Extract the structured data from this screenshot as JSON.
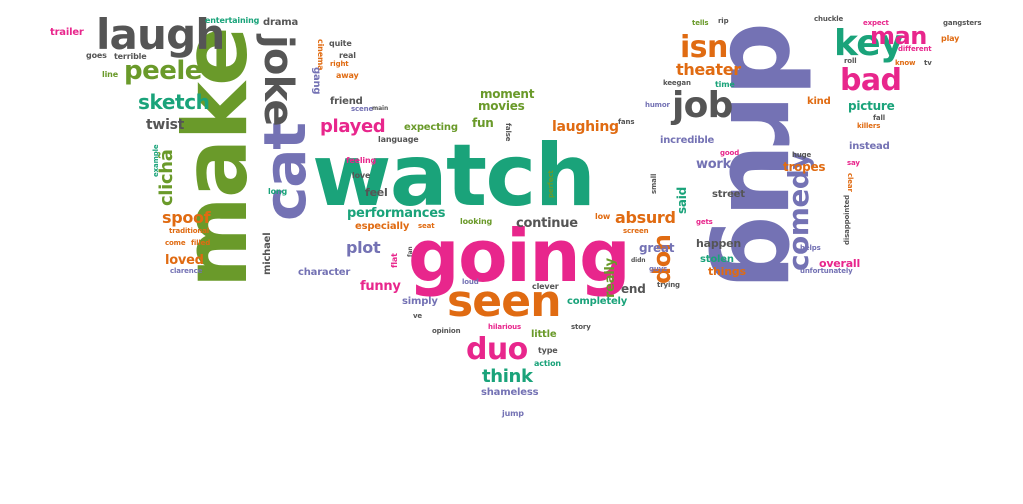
{
  "palette": {
    "pink": "#e8268c",
    "green": "#1aa37a",
    "purple": "#7472b4",
    "gray": "#555555",
    "orange": "#e06b12",
    "olive": "#6a9a2a",
    "brown": "#a87a2a"
  },
  "words": [
    {
      "text": "watch",
      "color": "green",
      "size": "xl"
    },
    {
      "text": "drug",
      "color": "purple",
      "size": "xl"
    },
    {
      "text": "make",
      "color": "olive",
      "size": "xl"
    },
    {
      "text": "going",
      "color": "pink",
      "size": "xl"
    },
    {
      "text": "cat",
      "color": "purple",
      "size": "l"
    },
    {
      "text": "joke",
      "color": "gray",
      "size": "l"
    },
    {
      "text": "seen",
      "color": "orange",
      "size": "l"
    },
    {
      "text": "laugh",
      "color": "gray",
      "size": "l"
    },
    {
      "text": "job",
      "color": "gray",
      "size": "l"
    },
    {
      "text": "key",
      "color": "green",
      "size": "l"
    },
    {
      "text": "bad",
      "color": "pink",
      "size": "l"
    },
    {
      "text": "duo",
      "color": "pink",
      "size": "l"
    },
    {
      "text": "comedy",
      "color": "purple",
      "size": "l"
    },
    {
      "text": "isn",
      "color": "orange",
      "size": "l"
    },
    {
      "text": "man",
      "color": "pink",
      "size": "l"
    },
    {
      "text": "peele",
      "color": "olive",
      "size": "m"
    },
    {
      "text": "sketch",
      "color": "green",
      "size": "m"
    },
    {
      "text": "played",
      "color": "pink",
      "size": "m"
    },
    {
      "text": "theater",
      "color": "orange",
      "size": "m"
    },
    {
      "text": "don",
      "color": "orange",
      "size": "m"
    },
    {
      "text": "clichã",
      "color": "olive",
      "size": "m"
    },
    {
      "text": "think",
      "color": "green",
      "size": "m"
    },
    {
      "text": "absurd",
      "color": "orange",
      "size": "m"
    },
    {
      "text": "plot",
      "color": "purple",
      "size": "m"
    },
    {
      "text": "spoof",
      "color": "orange",
      "size": "m"
    },
    {
      "text": "laughing",
      "color": "orange",
      "size": "m"
    },
    {
      "text": "moment",
      "color": "olive",
      "size": "s"
    },
    {
      "text": "movies",
      "color": "olive",
      "size": "s"
    },
    {
      "text": "fun",
      "color": "olive",
      "size": "s"
    },
    {
      "text": "twist",
      "color": "gray",
      "size": "s"
    },
    {
      "text": "performances",
      "color": "green",
      "size": "s"
    },
    {
      "text": "continue",
      "color": "gray",
      "size": "s"
    },
    {
      "text": "work",
      "color": "purple",
      "size": "s"
    },
    {
      "text": "tropes",
      "color": "orange",
      "size": "s"
    },
    {
      "text": "picture",
      "color": "green",
      "size": "s"
    },
    {
      "text": "loved",
      "color": "orange",
      "size": "s"
    },
    {
      "text": "funny",
      "color": "pink",
      "size": "s"
    },
    {
      "text": "end",
      "color": "gray",
      "size": "s"
    },
    {
      "text": "great",
      "color": "purple",
      "size": "s"
    },
    {
      "text": "overall",
      "color": "pink",
      "size": "s"
    },
    {
      "text": "incredible",
      "color": "purple",
      "size": "s"
    },
    {
      "text": "happen",
      "color": "gray",
      "size": "s"
    },
    {
      "text": "things",
      "color": "orange",
      "size": "s"
    },
    {
      "text": "really",
      "color": "olive",
      "size": "s"
    },
    {
      "text": "said",
      "color": "green",
      "size": "s"
    },
    {
      "text": "character",
      "color": "purple",
      "size": "s"
    },
    {
      "text": "especially",
      "color": "orange",
      "size": "s"
    },
    {
      "text": "feel",
      "color": "gray",
      "size": "s"
    },
    {
      "text": "completely",
      "color": "green",
      "size": "s"
    },
    {
      "text": "little",
      "color": "olive",
      "size": "s"
    },
    {
      "text": "shameless",
      "color": "purple",
      "size": "s"
    },
    {
      "text": "expecting",
      "color": "olive",
      "size": "s"
    },
    {
      "text": "friend",
      "color": "gray",
      "size": "s"
    },
    {
      "text": "michael",
      "color": "gray",
      "size": "s"
    },
    {
      "text": "stolen",
      "color": "green",
      "size": "s"
    },
    {
      "text": "instead",
      "color": "purple",
      "size": "s"
    },
    {
      "text": "street",
      "color": "gray",
      "size": "s"
    },
    {
      "text": "kind",
      "color": "orange",
      "size": "s"
    },
    {
      "text": "simply",
      "color": "purple",
      "size": "s"
    },
    {
      "text": "clever",
      "color": "gray",
      "size": "s"
    },
    {
      "text": "trailer",
      "color": "pink",
      "size": "xs"
    },
    {
      "text": "entertaining",
      "color": "green",
      "size": "xs"
    },
    {
      "text": "drama",
      "color": "gray",
      "size": "xs"
    },
    {
      "text": "goes",
      "color": "gray",
      "size": "xs"
    },
    {
      "text": "terrible",
      "color": "gray",
      "size": "xs"
    },
    {
      "text": "line",
      "color": "olive",
      "size": "xs"
    },
    {
      "text": "quite",
      "color": "gray",
      "size": "xs"
    },
    {
      "text": "real",
      "color": "gray",
      "size": "xs"
    },
    {
      "text": "right",
      "color": "orange",
      "size": "xs"
    },
    {
      "text": "cinema",
      "color": "orange",
      "size": "xs"
    },
    {
      "text": "gang",
      "color": "purple",
      "size": "xs"
    },
    {
      "text": "away",
      "color": "orange",
      "size": "xs"
    },
    {
      "text": "scene",
      "color": "purple",
      "size": "xs"
    },
    {
      "text": "language",
      "color": "gray",
      "size": "xs"
    },
    {
      "text": "feeling",
      "color": "pink",
      "size": "xs"
    },
    {
      "text": "love",
      "color": "gray",
      "size": "xs"
    },
    {
      "text": "long",
      "color": "green",
      "size": "xs"
    },
    {
      "text": "example",
      "color": "green",
      "size": "xs"
    },
    {
      "text": "traditional",
      "color": "orange",
      "size": "xs"
    },
    {
      "text": "come",
      "color": "orange",
      "size": "xs"
    },
    {
      "text": "filled",
      "color": "orange",
      "size": "xs"
    },
    {
      "text": "clarence",
      "color": "purple",
      "size": "xs"
    },
    {
      "text": "flat",
      "color": "pink",
      "size": "xs"
    },
    {
      "text": "fan",
      "color": "gray",
      "size": "xs"
    },
    {
      "text": "looking",
      "color": "olive",
      "size": "xs"
    },
    {
      "text": "seat",
      "color": "orange",
      "size": "xs"
    },
    {
      "text": "loud",
      "color": "purple",
      "size": "xs"
    },
    {
      "text": "opinion",
      "color": "gray",
      "size": "xs"
    },
    {
      "text": "hilarious",
      "color": "pink",
      "size": "xs"
    },
    {
      "text": "story",
      "color": "gray",
      "size": "xs"
    },
    {
      "text": "type",
      "color": "gray",
      "size": "xs"
    },
    {
      "text": "action",
      "color": "green",
      "size": "xs"
    },
    {
      "text": "jump",
      "color": "purple",
      "size": "xs"
    },
    {
      "text": "ve",
      "color": "gray",
      "size": "xs"
    },
    {
      "text": "false",
      "color": "gray",
      "size": "xs"
    },
    {
      "text": "main",
      "color": "gray",
      "size": "xs"
    },
    {
      "text": "perfect",
      "color": "olive",
      "size": "xs"
    },
    {
      "text": "low",
      "color": "orange",
      "size": "xs"
    },
    {
      "text": "screen",
      "color": "orange",
      "size": "xs"
    },
    {
      "text": "guys",
      "color": "purple",
      "size": "xs"
    },
    {
      "text": "didn",
      "color": "gray",
      "size": "xs"
    },
    {
      "text": "trying",
      "color": "gray",
      "size": "xs"
    },
    {
      "text": "tells",
      "color": "olive",
      "size": "xs"
    },
    {
      "text": "rip",
      "color": "gray",
      "size": "xs"
    },
    {
      "text": "chuckle",
      "color": "gray",
      "size": "xs"
    },
    {
      "text": "expect",
      "color": "pink",
      "size": "xs"
    },
    {
      "text": "gangsters",
      "color": "gray",
      "size": "xs"
    },
    {
      "text": "different",
      "color": "pink",
      "size": "xs"
    },
    {
      "text": "play",
      "color": "orange",
      "size": "xs"
    },
    {
      "text": "roll",
      "color": "gray",
      "size": "xs"
    },
    {
      "text": "know",
      "color": "orange",
      "size": "xs"
    },
    {
      "text": "tv",
      "color": "gray",
      "size": "xs"
    },
    {
      "text": "time",
      "color": "green",
      "size": "xs"
    },
    {
      "text": "keegan",
      "color": "gray",
      "size": "xs"
    },
    {
      "text": "humor",
      "color": "purple",
      "size": "xs"
    },
    {
      "text": "fall",
      "color": "gray",
      "size": "xs"
    },
    {
      "text": "killers",
      "color": "orange",
      "size": "xs"
    },
    {
      "text": "fans",
      "color": "gray",
      "size": "xs"
    },
    {
      "text": "good",
      "color": "pink",
      "size": "xs"
    },
    {
      "text": "huge",
      "color": "gray",
      "size": "xs"
    },
    {
      "text": "say",
      "color": "pink",
      "size": "xs"
    },
    {
      "text": "small",
      "color": "gray",
      "size": "xs"
    },
    {
      "text": "clear",
      "color": "orange",
      "size": "xs"
    },
    {
      "text": "gets",
      "color": "pink",
      "size": "xs"
    },
    {
      "text": "disappointed",
      "color": "gray",
      "size": "xs"
    },
    {
      "text": "helps",
      "color": "purple",
      "size": "xs"
    },
    {
      "text": "unfortunately",
      "color": "purple",
      "size": "xs"
    }
  ]
}
